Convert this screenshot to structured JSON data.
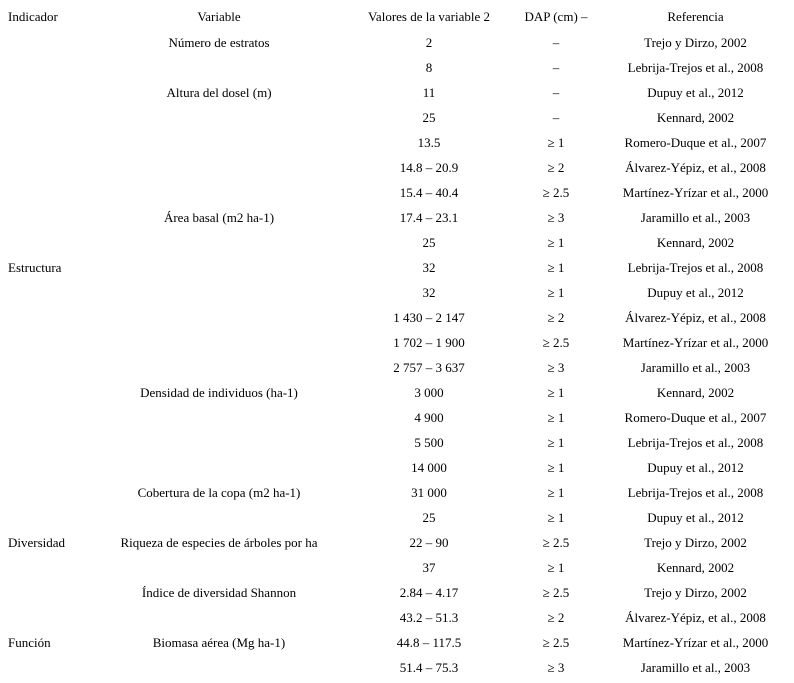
{
  "page": {
    "background_color": "#ffffff",
    "text_color": "#000000"
  },
  "table": {
    "headers": [
      "Indicador",
      "Variable",
      "Valores de la variable 2",
      "DAP (cm) –",
      "Referencia"
    ],
    "rows": [
      [
        "",
        "Número de estratos",
        "2",
        "–",
        "Trejo y Dirzo, 2002"
      ],
      [
        "",
        "",
        "8",
        "–",
        "Lebrija-Trejos et al., 2008"
      ],
      [
        "",
        "Altura del dosel (m)",
        "11",
        "–",
        "Dupuy et al., 2012"
      ],
      [
        "",
        "",
        "25",
        "–",
        "Kennard, 2002"
      ],
      [
        "",
        "",
        "13.5",
        "≥ 1",
        "Romero-Duque et al., 2007"
      ],
      [
        "",
        "",
        "14.8 – 20.9",
        "≥ 2",
        "Álvarez-Yépiz, et al., 2008"
      ],
      [
        "",
        "",
        "15.4 – 40.4",
        "≥ 2.5",
        "Martínez-Yrízar et al., 2000"
      ],
      [
        "",
        "Área basal (m2 ha-1)",
        "17.4 – 23.1",
        "≥ 3",
        "Jaramillo et al., 2003"
      ],
      [
        "",
        "",
        "25",
        "≥ 1",
        "Kennard, 2002"
      ],
      [
        "Estructura",
        "",
        "32",
        "≥ 1",
        "Lebrija-Trejos et al., 2008"
      ],
      [
        "",
        "",
        "32",
        "≥ 1",
        "Dupuy et al., 2012"
      ],
      [
        "",
        "",
        "1 430 – 2 147",
        "≥ 2",
        "Álvarez-Yépiz, et al., 2008"
      ],
      [
        "",
        "",
        "1 702 – 1 900",
        "≥ 2.5",
        "Martínez-Yrízar et al., 2000"
      ],
      [
        "",
        "",
        "2 757 – 3 637",
        "≥ 3",
        "Jaramillo et al., 2003"
      ],
      [
        "",
        "Densidad de individuos (ha-1)",
        "3 000",
        "≥ 1",
        "Kennard, 2002"
      ],
      [
        "",
        "",
        "4 900",
        "≥ 1",
        "Romero-Duque et al., 2007"
      ],
      [
        "",
        "",
        "5 500",
        "≥ 1",
        "Lebrija-Trejos et al., 2008"
      ],
      [
        "",
        "",
        "14 000",
        "≥ 1",
        "Dupuy et al., 2012"
      ],
      [
        "",
        "Cobertura de la copa (m2 ha-1)",
        "31 000",
        "≥ 1",
        "Lebrija-Trejos et al., 2008"
      ],
      [
        "",
        "",
        "25",
        "≥ 1",
        "Dupuy et al., 2012"
      ],
      [
        "Diversidad",
        "Riqueza de especies de árboles por ha",
        "22 – 90",
        "≥ 2.5",
        "Trejo y Dirzo, 2002"
      ],
      [
        "",
        "",
        "37",
        "≥ 1",
        "Kennard, 2002"
      ],
      [
        "",
        "Índice de diversidad Shannon",
        "2.84 – 4.17",
        "≥ 2.5",
        "Trejo y Dirzo, 2002"
      ],
      [
        "",
        "",
        "43.2 – 51.3",
        "≥ 2",
        "Álvarez-Yépiz, et al., 2008"
      ],
      [
        "Función",
        "Biomasa aérea (Mg ha-1)",
        "44.8 – 117.5",
        "≥ 2.5",
        "Martínez-Yrízar et al., 2000"
      ],
      [
        "",
        "",
        "51.4 – 75.3",
        "≥ 3",
        "Jaramillo et al., 2003"
      ]
    ]
  }
}
